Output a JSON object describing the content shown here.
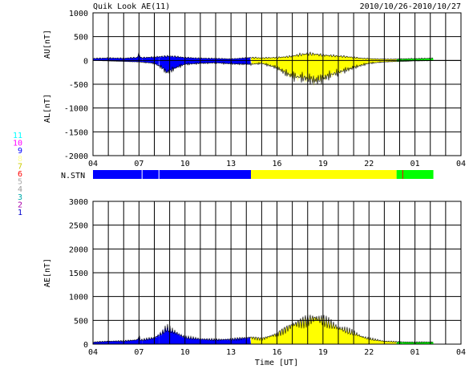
{
  "header": {
    "title": "Quik Look AE(11)",
    "date_range": "2010/10/26-2010/10/27"
  },
  "station_legend": {
    "labels": [
      "11",
      "10",
      "9",
      "8",
      "7",
      "6",
      "5",
      "4",
      "3",
      "2",
      "1"
    ],
    "colors": [
      "#00ffff",
      "#ff00ff",
      "#0000ff",
      "#ffff99",
      "#cccc00",
      "#ff0000",
      "#aaaaaa",
      "#999999",
      "#00aaaa",
      "#aa00aa",
      "#0000cc"
    ]
  },
  "nstn_label": "N.STN",
  "x_label": "Time [UT]",
  "colors": {
    "blue": "#0000ff",
    "yellow": "#ffff00",
    "green": "#00ff00",
    "red": "#ff0000",
    "grid": "#000000"
  },
  "chart_data": [
    {
      "type": "area",
      "name": "AU/AL panel",
      "ylabel_top": "AU[nT]",
      "ylabel_bottom": "AL[nT]",
      "ylim": [
        -2000,
        1000
      ],
      "yticks": [
        1000,
        500,
        0,
        -500,
        -1000,
        -1500,
        -2000
      ],
      "xlim": [
        4,
        28
      ],
      "xticks": [
        "04",
        "07",
        "10",
        "13",
        "16",
        "19",
        "22",
        "01",
        "04"
      ],
      "data_end_hour": 26.2,
      "au": [
        [
          4.0,
          40
        ],
        [
          5.0,
          50
        ],
        [
          6.0,
          45
        ],
        [
          6.9,
          60
        ],
        [
          7.0,
          160
        ],
        [
          7.1,
          55
        ],
        [
          8.0,
          70
        ],
        [
          8.5,
          80
        ],
        [
          9.0,
          90
        ],
        [
          10.0,
          60
        ],
        [
          11.0,
          45
        ],
        [
          12.0,
          40
        ],
        [
          13.0,
          30
        ],
        [
          14.3,
          60
        ],
        [
          15.0,
          50
        ],
        [
          16.0,
          60
        ],
        [
          16.8,
          80
        ],
        [
          17.5,
          120
        ],
        [
          18.0,
          140
        ],
        [
          18.5,
          130
        ],
        [
          19.0,
          110
        ],
        [
          19.5,
          100
        ],
        [
          20.0,
          90
        ],
        [
          20.8,
          70
        ],
        [
          21.5,
          45
        ],
        [
          22.5,
          30
        ],
        [
          23.5,
          25
        ],
        [
          24.5,
          35
        ],
        [
          25.5,
          40
        ],
        [
          26.2,
          45
        ]
      ],
      "al": [
        [
          4.0,
          0
        ],
        [
          5.0,
          -10
        ],
        [
          6.0,
          -20
        ],
        [
          7.0,
          -30
        ],
        [
          8.0,
          -60
        ],
        [
          8.5,
          -150
        ],
        [
          8.8,
          -250
        ],
        [
          9.0,
          -220
        ],
        [
          9.5,
          -140
        ],
        [
          10.0,
          -80
        ],
        [
          11.0,
          -60
        ],
        [
          12.0,
          -50
        ],
        [
          13.0,
          -70
        ],
        [
          14.3,
          -80
        ],
        [
          15.0,
          -60
        ],
        [
          16.0,
          -150
        ],
        [
          16.5,
          -250
        ],
        [
          17.0,
          -330
        ],
        [
          17.5,
          -350
        ],
        [
          18.0,
          -380
        ],
        [
          18.5,
          -420
        ],
        [
          19.0,
          -380
        ],
        [
          19.5,
          -300
        ],
        [
          20.0,
          -250
        ],
        [
          20.5,
          -200
        ],
        [
          21.0,
          -150
        ],
        [
          21.5,
          -100
        ],
        [
          22.0,
          -60
        ],
        [
          23.0,
          -30
        ],
        [
          24.0,
          -20
        ],
        [
          25.0,
          -10
        ],
        [
          26.2,
          -5
        ]
      ]
    },
    {
      "type": "area",
      "name": "AE panel",
      "ylabel": "AE[nT]",
      "ylim": [
        0,
        3000
      ],
      "yticks": [
        3000,
        2500,
        2000,
        1500,
        1000,
        500,
        0
      ],
      "xlim": [
        4,
        28
      ],
      "xticks": [
        "04",
        "07",
        "10",
        "13",
        "16",
        "19",
        "22",
        "01",
        "04"
      ],
      "ae": [
        [
          4.0,
          40
        ],
        [
          5.0,
          60
        ],
        [
          6.0,
          65
        ],
        [
          6.9,
          90
        ],
        [
          7.0,
          170
        ],
        [
          7.1,
          80
        ],
        [
          8.0,
          130
        ],
        [
          8.5,
          230
        ],
        [
          8.8,
          330
        ],
        [
          9.0,
          300
        ],
        [
          9.5,
          220
        ],
        [
          10.0,
          140
        ],
        [
          11.0,
          105
        ],
        [
          12.0,
          90
        ],
        [
          13.0,
          100
        ],
        [
          14.3,
          140
        ],
        [
          15.0,
          110
        ],
        [
          16.0,
          210
        ],
        [
          16.5,
          300
        ],
        [
          17.0,
          400
        ],
        [
          17.5,
          450
        ],
        [
          18.0,
          500
        ],
        [
          18.5,
          550
        ],
        [
          19.0,
          500
        ],
        [
          19.5,
          420
        ],
        [
          20.0,
          340
        ],
        [
          20.5,
          290
        ],
        [
          21.0,
          230
        ],
        [
          21.5,
          160
        ],
        [
          22.0,
          110
        ],
        [
          23.0,
          60
        ],
        [
          24.0,
          45
        ],
        [
          25.0,
          40
        ],
        [
          26.2,
          45
        ]
      ]
    }
  ],
  "nstn_segments": [
    {
      "start": 4.0,
      "end": 7.2,
      "color": "#0000ff"
    },
    {
      "start": 7.2,
      "end": 8.3,
      "color": "#0000ff"
    },
    {
      "start": 8.3,
      "end": 14.3,
      "color": "#0000ff"
    },
    {
      "start": 14.3,
      "end": 23.8,
      "color": "#ffff00"
    },
    {
      "start": 23.8,
      "end": 24.2,
      "color": "#00ff00"
    },
    {
      "start": 24.2,
      "end": 26.2,
      "color": "#00ff00"
    }
  ],
  "nstn_markers": [
    7.2,
    8.3,
    24.2
  ]
}
